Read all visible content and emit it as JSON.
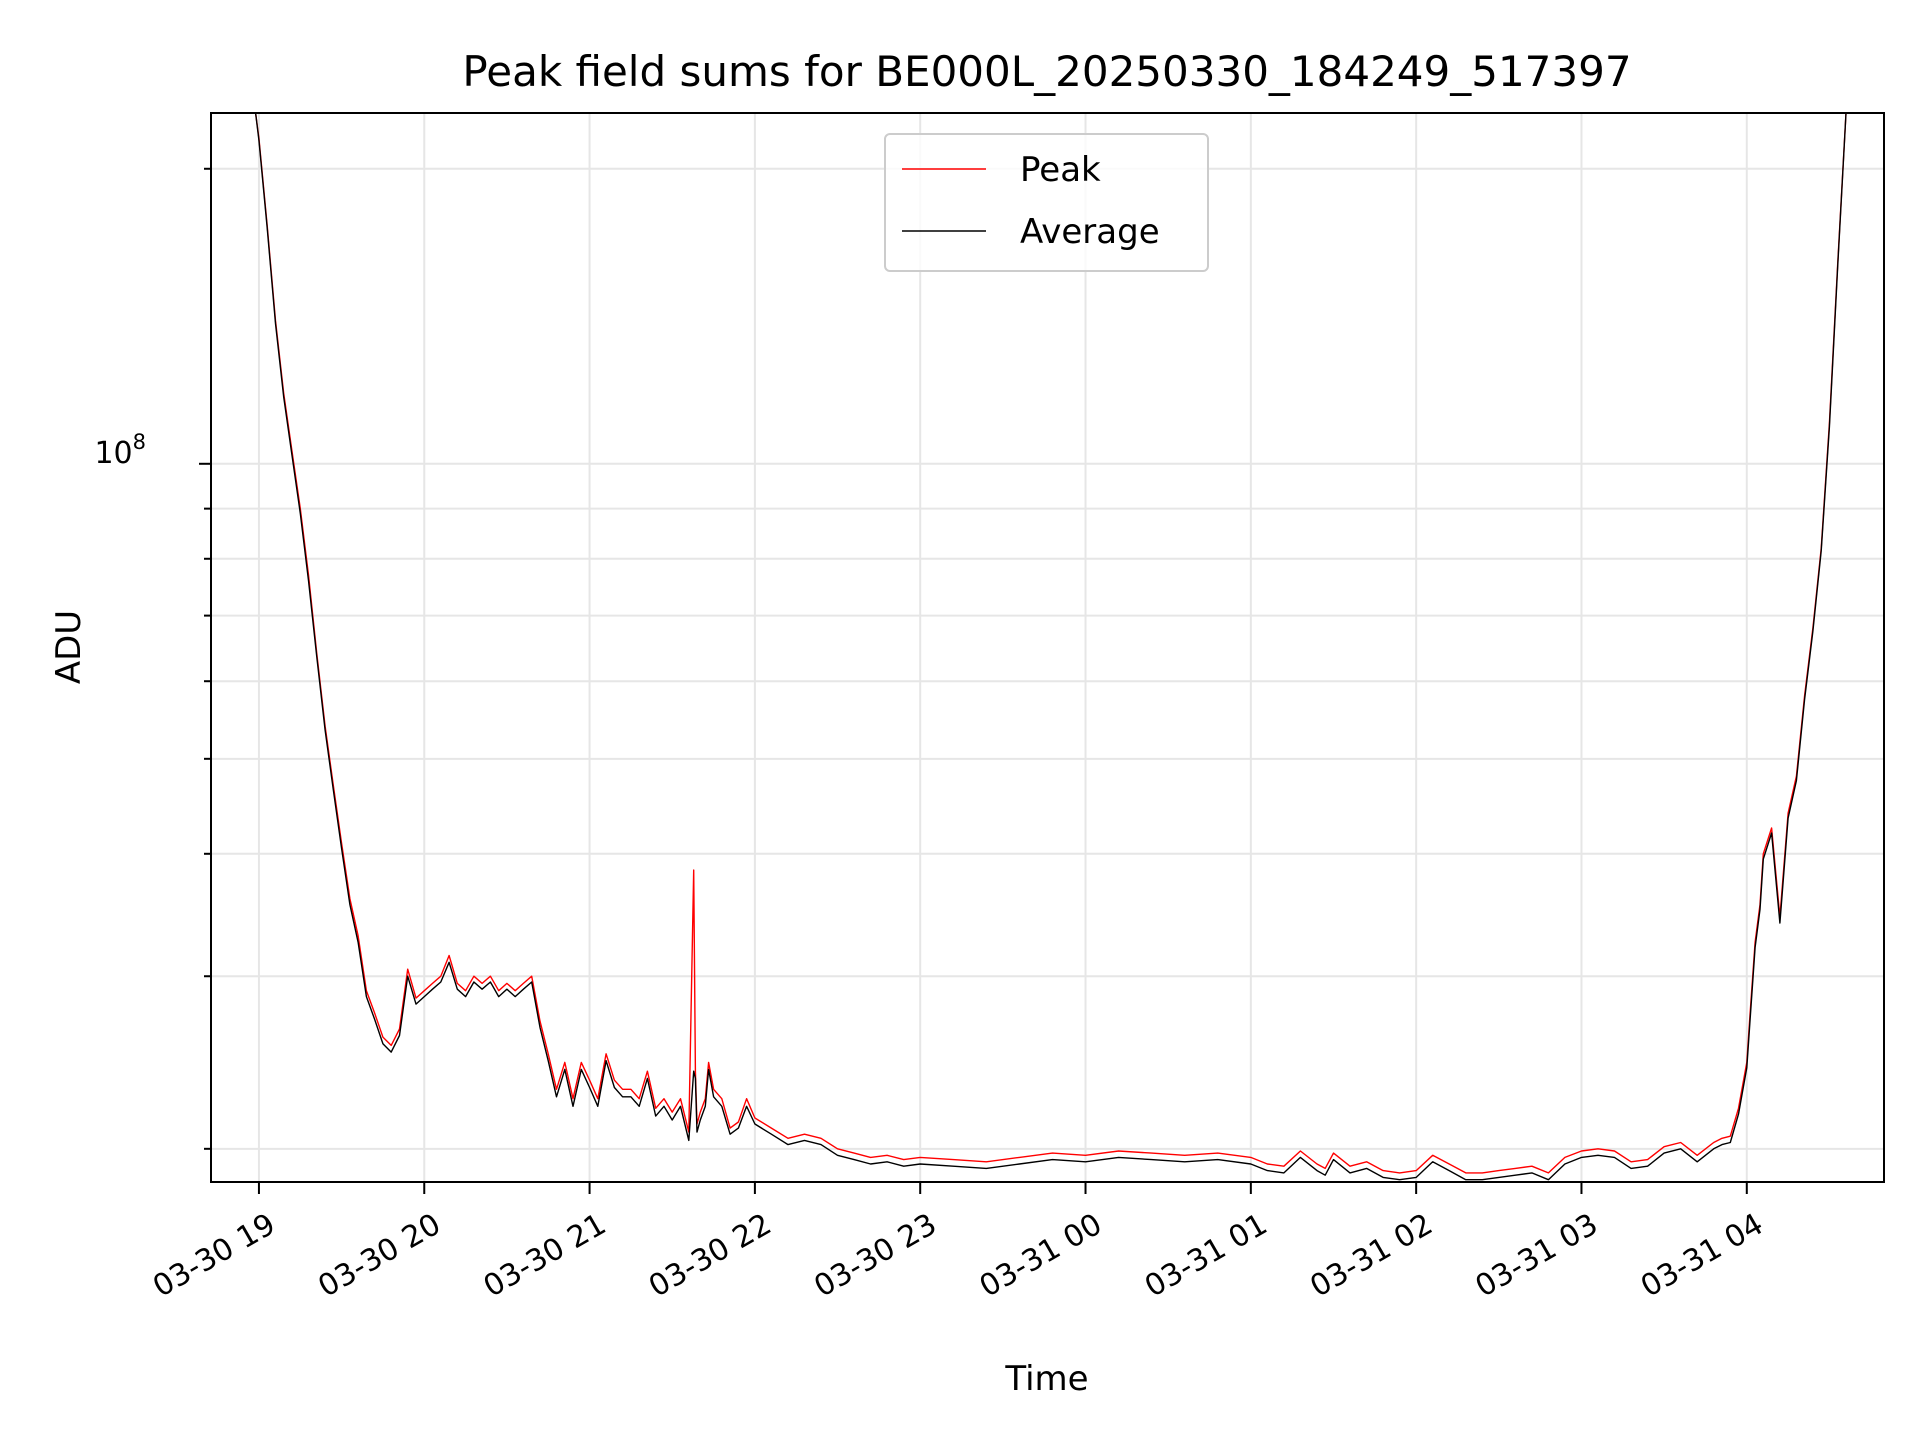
{
  "chart_data": {
    "type": "line",
    "title": "Peak field sums for BE000L_20250330_184249_517397",
    "xlabel": "Time",
    "ylabel": "ADU",
    "yscale": "log",
    "grid": true,
    "legend_position": "upper center",
    "x_ticks": [
      "03-30 19",
      "03-30 20",
      "03-30 21",
      "03-30 22",
      "03-30 23",
      "03-31 00",
      "03-31 01",
      "03-31 02",
      "03-31 03",
      "03-31 04"
    ],
    "y_tick_base": "10",
    "y_tick_exponent": "8",
    "x_range_hours": [
      -0.29,
      9.83
    ],
    "ylim": [
      18500000,
      228000000
    ],
    "series": [
      {
        "name": "Peak",
        "color": "#ff0000",
        "x": [
          -0.29,
          -0.02,
          0.0,
          0.05,
          0.1,
          0.15,
          0.2,
          0.25,
          0.3,
          0.35,
          0.4,
          0.45,
          0.5,
          0.55,
          0.6,
          0.65,
          0.7,
          0.75,
          0.8,
          0.85,
          0.9,
          0.95,
          1.0,
          1.05,
          1.1,
          1.15,
          1.2,
          1.25,
          1.3,
          1.35,
          1.4,
          1.45,
          1.5,
          1.55,
          1.6,
          1.65,
          1.7,
          1.75,
          1.8,
          1.85,
          1.9,
          1.95,
          2.0,
          2.05,
          2.1,
          2.15,
          2.2,
          2.25,
          2.3,
          2.35,
          2.4,
          2.45,
          2.5,
          2.55,
          2.6,
          2.63,
          2.64,
          2.65,
          2.67,
          2.7,
          2.72,
          2.75,
          2.8,
          2.85,
          2.9,
          2.95,
          3.0,
          3.1,
          3.2,
          3.3,
          3.4,
          3.5,
          3.6,
          3.7,
          3.8,
          3.9,
          4.0,
          4.2,
          4.4,
          4.6,
          4.8,
          5.0,
          5.2,
          5.4,
          5.6,
          5.8,
          6.0,
          6.1,
          6.2,
          6.3,
          6.4,
          6.45,
          6.5,
          6.6,
          6.7,
          6.8,
          6.9,
          7.0,
          7.1,
          7.2,
          7.3,
          7.4,
          7.5,
          7.6,
          7.7,
          7.8,
          7.9,
          8.0,
          8.1,
          8.2,
          8.3,
          8.4,
          8.5,
          8.6,
          8.7,
          8.8,
          8.85,
          8.9,
          8.95,
          9.0,
          9.02,
          9.05,
          9.08,
          9.1,
          9.15,
          9.2,
          9.25,
          9.3,
          9.35,
          9.4,
          9.45,
          9.5,
          9.55,
          9.6
        ],
        "values": [
          228000000,
          228000000,
          215000000,
          175000000,
          140000000,
          118000000,
          103000000,
          90000000,
          77000000,
          64000000,
          54000000,
          47000000,
          41000000,
          36000000,
          33000000,
          29000000,
          27500000,
          26000000,
          25500000,
          26500000,
          30500000,
          28500000,
          29000000,
          29500000,
          30000000,
          31500000,
          29500000,
          29000000,
          30000000,
          29500000,
          30000000,
          29000000,
          29500000,
          29000000,
          29500000,
          30000000,
          27000000,
          25000000,
          23000000,
          24500000,
          22500000,
          24500000,
          23500000,
          22500000,
          25000000,
          23500000,
          23000000,
          23000000,
          22500000,
          24000000,
          22000000,
          22500000,
          21800000,
          22500000,
          20800000,
          38500000,
          24000000,
          21200000,
          21800000,
          22500000,
          24500000,
          23000000,
          22500000,
          21000000,
          21300000,
          22500000,
          21500000,
          21000000,
          20500000,
          20700000,
          20500000,
          20000000,
          19800000,
          19600000,
          19700000,
          19500000,
          19600000,
          19500000,
          19400000,
          19600000,
          19800000,
          19700000,
          19900000,
          19800000,
          19700000,
          19800000,
          19600000,
          19300000,
          19200000,
          19900000,
          19300000,
          19100000,
          19800000,
          19200000,
          19400000,
          19000000,
          18900000,
          19000000,
          19700000,
          19300000,
          18900000,
          18900000,
          19000000,
          19100000,
          19200000,
          18900000,
          19600000,
          19900000,
          20000000,
          19900000,
          19400000,
          19500000,
          20100000,
          20300000,
          19700000,
          20300000,
          20500000,
          20600000,
          22000000,
          24500000,
          27500000,
          32500000,
          35500000,
          40000000,
          42500000,
          34500000,
          44000000,
          48000000,
          58000000,
          68000000,
          82000000,
          110000000,
          160000000,
          228000000
        ],
        "width": 1.4
      },
      {
        "name": "Average",
        "color": "#000000",
        "x": [
          -0.29,
          -0.02,
          0.0,
          0.05,
          0.1,
          0.15,
          0.2,
          0.25,
          0.3,
          0.35,
          0.4,
          0.45,
          0.5,
          0.55,
          0.6,
          0.65,
          0.7,
          0.75,
          0.8,
          0.85,
          0.9,
          0.95,
          1.0,
          1.05,
          1.1,
          1.15,
          1.2,
          1.25,
          1.3,
          1.35,
          1.4,
          1.45,
          1.5,
          1.55,
          1.6,
          1.65,
          1.7,
          1.75,
          1.8,
          1.85,
          1.9,
          1.95,
          2.0,
          2.05,
          2.1,
          2.15,
          2.2,
          2.25,
          2.3,
          2.35,
          2.4,
          2.45,
          2.5,
          2.55,
          2.6,
          2.63,
          2.64,
          2.65,
          2.67,
          2.7,
          2.72,
          2.75,
          2.8,
          2.85,
          2.9,
          2.95,
          3.0,
          3.1,
          3.2,
          3.3,
          3.4,
          3.5,
          3.6,
          3.7,
          3.8,
          3.9,
          4.0,
          4.2,
          4.4,
          4.6,
          4.8,
          5.0,
          5.2,
          5.4,
          5.6,
          5.8,
          6.0,
          6.1,
          6.2,
          6.3,
          6.4,
          6.45,
          6.5,
          6.6,
          6.7,
          6.8,
          6.9,
          7.0,
          7.1,
          7.2,
          7.3,
          7.4,
          7.5,
          7.6,
          7.7,
          7.8,
          7.9,
          8.0,
          8.1,
          8.2,
          8.3,
          8.4,
          8.5,
          8.6,
          8.7,
          8.8,
          8.85,
          8.9,
          8.95,
          9.0,
          9.02,
          9.05,
          9.08,
          9.1,
          9.15,
          9.2,
          9.25,
          9.3,
          9.35,
          9.4,
          9.45,
          9.5,
          9.55,
          9.6
        ],
        "values": [
          228000000,
          228000000,
          214000000,
          174000000,
          139000000,
          117000000,
          102000000,
          89000000,
          76000000,
          63500000,
          53500000,
          46500000,
          40500000,
          35500000,
          32500000,
          28600000,
          27100000,
          25600000,
          25100000,
          26100000,
          30000000,
          28100000,
          28600000,
          29100000,
          29600000,
          31000000,
          29100000,
          28600000,
          29600000,
          29100000,
          29600000,
          28600000,
          29100000,
          28600000,
          29100000,
          29600000,
          26600000,
          24600000,
          22600000,
          24100000,
          22100000,
          24100000,
          23100000,
          22100000,
          24600000,
          23100000,
          22600000,
          22600000,
          22100000,
          23600000,
          21600000,
          22100000,
          21400000,
          22100000,
          20400000,
          24000000,
          23600000,
          20800000,
          21400000,
          22100000,
          24100000,
          22600000,
          22100000,
          20700000,
          21000000,
          22100000,
          21200000,
          20700000,
          20200000,
          20400000,
          20200000,
          19700000,
          19500000,
          19300000,
          19400000,
          19200000,
          19300000,
          19200000,
          19100000,
          19300000,
          19500000,
          19400000,
          19600000,
          19500000,
          19400000,
          19500000,
          19300000,
          19000000,
          18900000,
          19600000,
          19000000,
          18800000,
          19500000,
          18900000,
          19100000,
          18700000,
          18600000,
          18700000,
          19400000,
          19000000,
          18600000,
          18600000,
          18700000,
          18800000,
          18900000,
          18600000,
          19300000,
          19600000,
          19700000,
          19600000,
          19100000,
          19200000,
          19800000,
          20000000,
          19400000,
          20000000,
          20200000,
          20300000,
          21700000,
          24200000,
          27100000,
          32100000,
          35100000,
          39500000,
          42000000,
          34000000,
          43500000,
          47500000,
          57500000,
          67500000,
          81500000,
          109000000,
          159000000,
          228000000
        ],
        "width": 1.4
      }
    ]
  }
}
